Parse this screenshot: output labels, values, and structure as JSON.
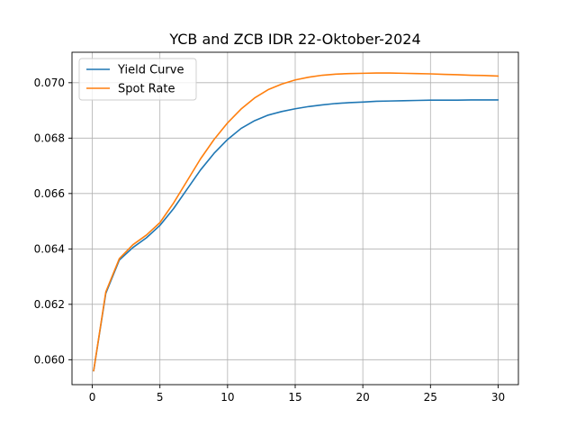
{
  "chart_data": {
    "type": "line",
    "title": "YCB and ZCB IDR 22-Oktober-2024",
    "xlabel": "",
    "ylabel": "",
    "xlim": [
      -1.5,
      31.5
    ],
    "ylim": [
      0.0591,
      0.0711
    ],
    "xticks": [
      0,
      5,
      10,
      15,
      20,
      25,
      30
    ],
    "xtick_labels": [
      "0",
      "5",
      "10",
      "15",
      "20",
      "25",
      "30"
    ],
    "yticks": [
      0.06,
      0.062,
      0.064,
      0.066,
      0.068,
      0.07
    ],
    "ytick_labels": [
      "0.060",
      "0.062",
      "0.064",
      "0.066",
      "0.068",
      "0.070"
    ],
    "grid": true,
    "legend_position": "top-left",
    "x": [
      0.1,
      1,
      2,
      3,
      4,
      5,
      6,
      7,
      8,
      9,
      10,
      11,
      12,
      13,
      14,
      15,
      16,
      17,
      18,
      19,
      20,
      21,
      22,
      23,
      24,
      25,
      26,
      27,
      28,
      29,
      30
    ],
    "series": [
      {
        "name": "Yield Curve",
        "color": "#1f77b4",
        "values": [
          0.0596,
          0.0624,
          0.0636,
          0.06405,
          0.0644,
          0.06485,
          0.06545,
          0.06615,
          0.06685,
          0.06745,
          0.06795,
          0.06835,
          0.06863,
          0.06883,
          0.06896,
          0.06906,
          0.06914,
          0.0692,
          0.06925,
          0.06928,
          0.0693,
          0.06933,
          0.06934,
          0.06935,
          0.06936,
          0.06937,
          0.06937,
          0.06937,
          0.06938,
          0.06938,
          0.06938
        ]
      },
      {
        "name": "Spot Rate",
        "color": "#ff7f0e",
        "values": [
          0.0596,
          0.06245,
          0.06365,
          0.06415,
          0.0645,
          0.06495,
          0.06565,
          0.06645,
          0.06725,
          0.06795,
          0.06855,
          0.06905,
          0.06945,
          0.06975,
          0.06995,
          0.0701,
          0.0702,
          0.07027,
          0.07031,
          0.07033,
          0.07034,
          0.07035,
          0.07035,
          0.07034,
          0.07033,
          0.07032,
          0.0703,
          0.07029,
          0.07027,
          0.07026,
          0.07024
        ]
      }
    ]
  }
}
